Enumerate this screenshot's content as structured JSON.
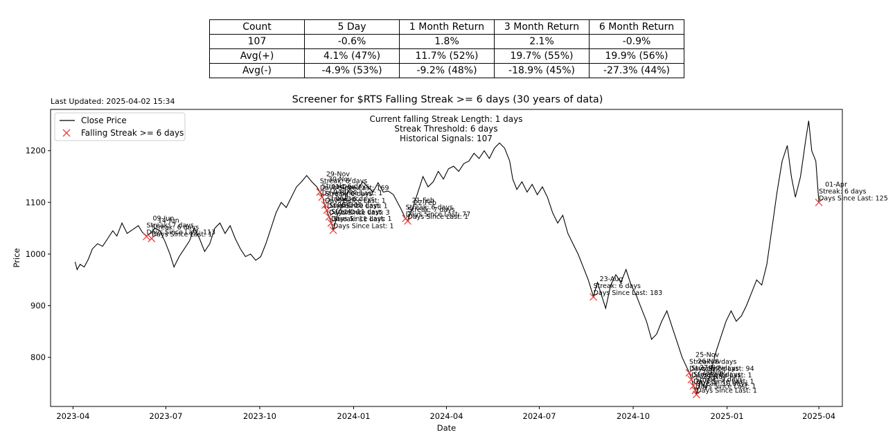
{
  "stats_table": {
    "header": [
      "Count",
      "5 Day",
      "1 Month Return",
      "3 Month Return",
      "6 Month Return"
    ],
    "rows": [
      [
        "107",
        "-0.6%",
        "1.8%",
        "2.1%",
        "-0.9%"
      ],
      [
        "Avg(+)",
        "4.1% (47%)",
        "11.7% (52%)",
        "19.7% (55%)",
        "19.9% (56%)"
      ],
      [
        "Avg(-)",
        "-4.9% (53%)",
        "-9.2% (48%)",
        "-18.9% (45%)",
        "-27.3% (44%)"
      ]
    ]
  },
  "last_updated": "Last Updated: 2025-04-02 15:34",
  "chart_data": {
    "type": "line",
    "title": "Screener for $RTS Falling Streak >= 6 days (30 years of data)",
    "xlabel": "Date",
    "ylabel": "Price",
    "xlim": [
      "2023-03-10",
      "2025-04-24"
    ],
    "ylim": [
      705,
      1280
    ],
    "x_ticks": [
      "2023-04",
      "2023-07",
      "2023-10",
      "2024-01",
      "2024-04",
      "2024-07",
      "2024-10",
      "2025-01",
      "2025-04"
    ],
    "y_ticks": [
      800,
      900,
      1000,
      1100,
      1200
    ],
    "legend": {
      "position": "upper-left",
      "entries": [
        "Close Price",
        "Falling Streak >= 6 days"
      ]
    },
    "info_lines": [
      "Current falling Streak Length: 1 days",
      "Streak Threshold: 6 days",
      "Historical Signals: 107"
    ],
    "colors": {
      "line": "#000000",
      "marker": "#e8403a"
    },
    "series": [
      {
        "name": "Close Price",
        "points": [
          [
            "2023-04-03",
            985
          ],
          [
            "2023-04-05",
            970
          ],
          [
            "2023-04-08",
            980
          ],
          [
            "2023-04-12",
            975
          ],
          [
            "2023-04-16",
            990
          ],
          [
            "2023-04-20",
            1010
          ],
          [
            "2023-04-25",
            1020
          ],
          [
            "2023-04-30",
            1015
          ],
          [
            "2023-05-05",
            1030
          ],
          [
            "2023-05-10",
            1045
          ],
          [
            "2023-05-14",
            1035
          ],
          [
            "2023-05-19",
            1060
          ],
          [
            "2023-05-24",
            1040
          ],
          [
            "2023-05-30",
            1048
          ],
          [
            "2023-06-04",
            1055
          ],
          [
            "2023-06-08",
            1042
          ],
          [
            "2023-06-12",
            1035
          ],
          [
            "2023-06-16",
            1040
          ],
          [
            "2023-06-20",
            1050
          ],
          [
            "2023-06-25",
            1045
          ],
          [
            "2023-06-30",
            1025
          ],
          [
            "2023-07-05",
            1000
          ],
          [
            "2023-07-09",
            975
          ],
          [
            "2023-07-14",
            995
          ],
          [
            "2023-07-19",
            1010
          ],
          [
            "2023-07-24",
            1025
          ],
          [
            "2023-07-29",
            1050
          ],
          [
            "2023-08-03",
            1030
          ],
          [
            "2023-08-08",
            1005
          ],
          [
            "2023-08-13",
            1020
          ],
          [
            "2023-08-18",
            1050
          ],
          [
            "2023-08-23",
            1060
          ],
          [
            "2023-08-28",
            1040
          ],
          [
            "2023-09-02",
            1055
          ],
          [
            "2023-09-07",
            1030
          ],
          [
            "2023-09-12",
            1010
          ],
          [
            "2023-09-17",
            995
          ],
          [
            "2023-09-22",
            1000
          ],
          [
            "2023-09-27",
            988
          ],
          [
            "2023-10-02",
            995
          ],
          [
            "2023-10-07",
            1020
          ],
          [
            "2023-10-12",
            1050
          ],
          [
            "2023-10-17",
            1080
          ],
          [
            "2023-10-22",
            1100
          ],
          [
            "2023-10-27",
            1090
          ],
          [
            "2023-11-01",
            1110
          ],
          [
            "2023-11-06",
            1130
          ],
          [
            "2023-11-11",
            1140
          ],
          [
            "2023-11-16",
            1152
          ],
          [
            "2023-11-21",
            1140
          ],
          [
            "2023-11-26",
            1130
          ],
          [
            "2023-11-29",
            1120
          ],
          [
            "2023-12-02",
            1108
          ],
          [
            "2023-12-04",
            1092
          ],
          [
            "2023-12-06",
            1082
          ],
          [
            "2023-12-08",
            1072
          ],
          [
            "2023-12-10",
            1062
          ],
          [
            "2023-12-12",
            1046
          ],
          [
            "2023-12-16",
            1075
          ],
          [
            "2023-12-21",
            1095
          ],
          [
            "2023-12-26",
            1120
          ],
          [
            "2023-12-31",
            1130
          ],
          [
            "2024-01-05",
            1125
          ],
          [
            "2024-01-10",
            1140
          ],
          [
            "2024-01-15",
            1130
          ],
          [
            "2024-01-20",
            1120
          ],
          [
            "2024-01-25",
            1138
          ],
          [
            "2024-01-30",
            1120
          ],
          [
            "2024-02-04",
            1122
          ],
          [
            "2024-02-09",
            1115
          ],
          [
            "2024-02-13",
            1100
          ],
          [
            "2024-02-17",
            1085
          ],
          [
            "2024-02-21",
            1068
          ],
          [
            "2024-02-23",
            1065
          ],
          [
            "2024-02-28",
            1090
          ],
          [
            "2024-03-04",
            1120
          ],
          [
            "2024-03-09",
            1150
          ],
          [
            "2024-03-14",
            1130
          ],
          [
            "2024-03-19",
            1140
          ],
          [
            "2024-03-24",
            1160
          ],
          [
            "2024-03-29",
            1145
          ],
          [
            "2024-04-03",
            1165
          ],
          [
            "2024-04-08",
            1170
          ],
          [
            "2024-04-13",
            1160
          ],
          [
            "2024-04-18",
            1175
          ],
          [
            "2024-04-23",
            1180
          ],
          [
            "2024-04-28",
            1195
          ],
          [
            "2024-05-03",
            1185
          ],
          [
            "2024-05-08",
            1200
          ],
          [
            "2024-05-13",
            1185
          ],
          [
            "2024-05-18",
            1205
          ],
          [
            "2024-05-23",
            1215
          ],
          [
            "2024-05-28",
            1205
          ],
          [
            "2024-06-02",
            1180
          ],
          [
            "2024-06-05",
            1145
          ],
          [
            "2024-06-09",
            1125
          ],
          [
            "2024-06-14",
            1140
          ],
          [
            "2024-06-19",
            1120
          ],
          [
            "2024-06-24",
            1135
          ],
          [
            "2024-06-29",
            1115
          ],
          [
            "2024-07-04",
            1130
          ],
          [
            "2024-07-09",
            1110
          ],
          [
            "2024-07-14",
            1080
          ],
          [
            "2024-07-19",
            1060
          ],
          [
            "2024-07-24",
            1075
          ],
          [
            "2024-07-29",
            1040
          ],
          [
            "2024-08-03",
            1020
          ],
          [
            "2024-08-08",
            1000
          ],
          [
            "2024-08-13",
            975
          ],
          [
            "2024-08-18",
            950
          ],
          [
            "2024-08-23",
            918
          ],
          [
            "2024-08-27",
            945
          ],
          [
            "2024-08-31",
            920
          ],
          [
            "2024-09-04",
            895
          ],
          [
            "2024-09-09",
            940
          ],
          [
            "2024-09-14",
            960
          ],
          [
            "2024-09-19",
            945
          ],
          [
            "2024-09-24",
            970
          ],
          [
            "2024-09-29",
            940
          ],
          [
            "2024-10-04",
            920
          ],
          [
            "2024-10-09",
            895
          ],
          [
            "2024-10-14",
            870
          ],
          [
            "2024-10-19",
            835
          ],
          [
            "2024-10-24",
            845
          ],
          [
            "2024-10-29",
            870
          ],
          [
            "2024-11-03",
            890
          ],
          [
            "2024-11-08",
            860
          ],
          [
            "2024-11-13",
            830
          ],
          [
            "2024-11-18",
            800
          ],
          [
            "2024-11-25",
            770
          ],
          [
            "2024-11-27",
            760
          ],
          [
            "2024-11-29",
            745
          ],
          [
            "2024-12-01",
            738
          ],
          [
            "2024-12-02",
            728
          ],
          [
            "2024-12-06",
            755
          ],
          [
            "2024-12-11",
            740
          ],
          [
            "2024-12-16",
            770
          ],
          [
            "2024-12-21",
            810
          ],
          [
            "2024-12-26",
            840
          ],
          [
            "2024-12-31",
            870
          ],
          [
            "2025-01-05",
            890
          ],
          [
            "2025-01-10",
            870
          ],
          [
            "2025-01-15",
            880
          ],
          [
            "2025-01-20",
            900
          ],
          [
            "2025-01-25",
            925
          ],
          [
            "2025-01-30",
            950
          ],
          [
            "2025-02-04",
            940
          ],
          [
            "2025-02-09",
            980
          ],
          [
            "2025-02-14",
            1050
          ],
          [
            "2025-02-19",
            1120
          ],
          [
            "2025-02-24",
            1180
          ],
          [
            "2025-03-01",
            1210
          ],
          [
            "2025-03-05",
            1150
          ],
          [
            "2025-03-09",
            1110
          ],
          [
            "2025-03-14",
            1150
          ],
          [
            "2025-03-19",
            1220
          ],
          [
            "2025-03-22",
            1258
          ],
          [
            "2025-03-25",
            1200
          ],
          [
            "2025-03-29",
            1180
          ],
          [
            "2025-04-01",
            1100
          ]
        ]
      }
    ],
    "signals": [
      {
        "x": "2023-06-12",
        "y": 1034,
        "label": [
          "09-Jun",
          "Streak: 7 days",
          "Days Since Last: 113"
        ]
      },
      {
        "x": "2023-06-17",
        "y": 1030,
        "label": [
          "14-Jun",
          "Streak: 6 days",
          "Days Since Last: 1"
        ]
      },
      {
        "x": "2023-11-29",
        "y": 1120,
        "label": [
          "29-Nov",
          "Streak: 6 days",
          "Days Since Last: 169"
        ]
      },
      {
        "x": "2023-12-01",
        "y": 1110,
        "label": [
          "30-Nov",
          "Streak: 6 days",
          "Days Since Last: 1"
        ]
      },
      {
        "x": "2023-12-04",
        "y": 1095,
        "label": [
          "01-Dec",
          "Streak: 6 days",
          "Days Since Last: 1"
        ]
      },
      {
        "x": "2023-12-06",
        "y": 1085,
        "label": [
          "04-Dec",
          "Streak: 6 days",
          "Days Since Last: 1"
        ]
      },
      {
        "x": "2023-12-08",
        "y": 1072,
        "label": [
          "06-Dec",
          "Streak: 10 days",
          "Days Since Last: 3"
        ]
      },
      {
        "x": "2023-12-10",
        "y": 1060,
        "label": [
          "08-Dec",
          "Streak: 11 days",
          "Days Since Last: 1"
        ]
      },
      {
        "x": "2023-12-12",
        "y": 1046,
        "label": [
          "11-Dec",
          "Streak: 11 days",
          "Days Since Last: 1"
        ]
      },
      {
        "x": "2024-02-21",
        "y": 1069,
        "label": [
          "21-Feb",
          "Streak: 6 days",
          "Days Since Last: 77"
        ]
      },
      {
        "x": "2024-02-23",
        "y": 1064,
        "label": [
          "22-Feb",
          "Streak: 7 days",
          "Days Since Last: 1"
        ]
      },
      {
        "x": "2024-08-23",
        "y": 917,
        "label": [
          "23-Aug",
          "Streak: 6 days",
          "Days Since Last: 183"
        ]
      },
      {
        "x": "2024-11-25",
        "y": 770,
        "label": [
          "25-Nov",
          "Streak: 6 days",
          "Days Since Last: 94"
        ]
      },
      {
        "x": "2024-11-27",
        "y": 757,
        "label": [
          "26-Nov",
          "Streak: 7 days",
          "Days Since Last: 1"
        ]
      },
      {
        "x": "2024-11-29",
        "y": 745,
        "label": [
          "27-Nov",
          "Streak: 8 days",
          "Days Since Last: 1"
        ]
      },
      {
        "x": "2024-12-01",
        "y": 736,
        "label": [
          "28-Nov",
          "Streak: 9 days",
          "Days Since Last: 1"
        ]
      },
      {
        "x": "2024-12-02",
        "y": 728,
        "label": [
          "29-Nov",
          "Streak: 10 days",
          "Days Since Last: 1"
        ]
      },
      {
        "x": "2025-04-01",
        "y": 1100,
        "label": [
          "01-Apr",
          "Streak: 6 days",
          "Days Since Last: 125"
        ]
      }
    ]
  }
}
